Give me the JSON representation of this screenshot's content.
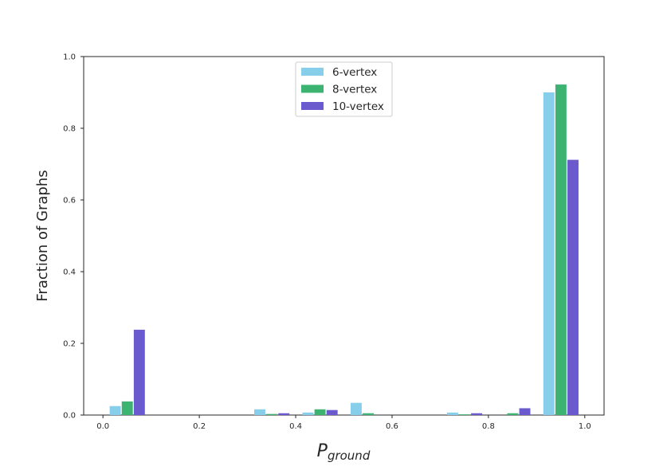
{
  "chart_data": {
    "type": "bar",
    "title": "",
    "xlabel_main": "P",
    "xlabel_sub": "ground",
    "ylabel": "Fraction of Graphs",
    "xlim": [
      -0.04,
      1.04
    ],
    "ylim": [
      0,
      1.0
    ],
    "xticks": [
      "0.0",
      "0.2",
      "0.4",
      "0.6",
      "0.8",
      "1.0"
    ],
    "yticks": [
      "0.0",
      "0.2",
      "0.4",
      "0.6",
      "0.8",
      "1.0"
    ],
    "bin_width": 0.025,
    "bin_starts": [
      0.013,
      0.213,
      0.313,
      0.413,
      0.513,
      0.713,
      0.813,
      0.913
    ],
    "grid": false,
    "legend_position": "top-center",
    "series": [
      {
        "name": "6-vertex",
        "color": "#87ceeb",
        "values": [
          0.025,
          0.0,
          0.016,
          0.007,
          0.034,
          0.007,
          0.0,
          0.9
        ]
      },
      {
        "name": "8-vertex",
        "color": "#3cb371",
        "values": [
          0.038,
          0.0,
          0.003,
          0.016,
          0.005,
          0.002,
          0.005,
          0.922
        ]
      },
      {
        "name": "10-vertex",
        "color": "#6a5acd",
        "values": [
          0.238,
          0.0,
          0.005,
          0.014,
          0.0,
          0.005,
          0.019,
          0.712
        ]
      }
    ]
  }
}
